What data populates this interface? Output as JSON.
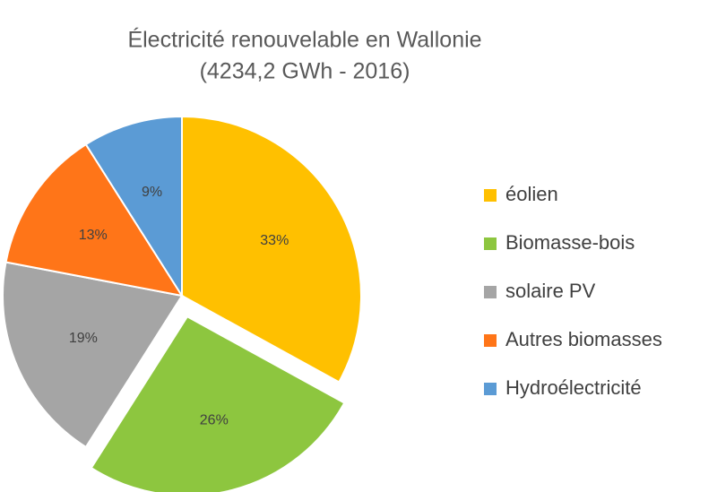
{
  "chart_data": {
    "type": "pie",
    "title": "Électricité renouvelable en Wallonie",
    "subtitle": "(4234,2 GWh - 2016)",
    "categories": [
      "éolien",
      "Biomasse-bois",
      "solaire PV",
      "Autres biomasses",
      "Hydroélectricité"
    ],
    "values": [
      33,
      26,
      19,
      13,
      9
    ],
    "value_labels": [
      "33%",
      "26%",
      "19%",
      "13%",
      "9%"
    ],
    "colors": [
      "#ffc000",
      "#8dc63f",
      "#a5a5a5",
      "#ff7518",
      "#5b9bd5"
    ],
    "legend": "right"
  }
}
